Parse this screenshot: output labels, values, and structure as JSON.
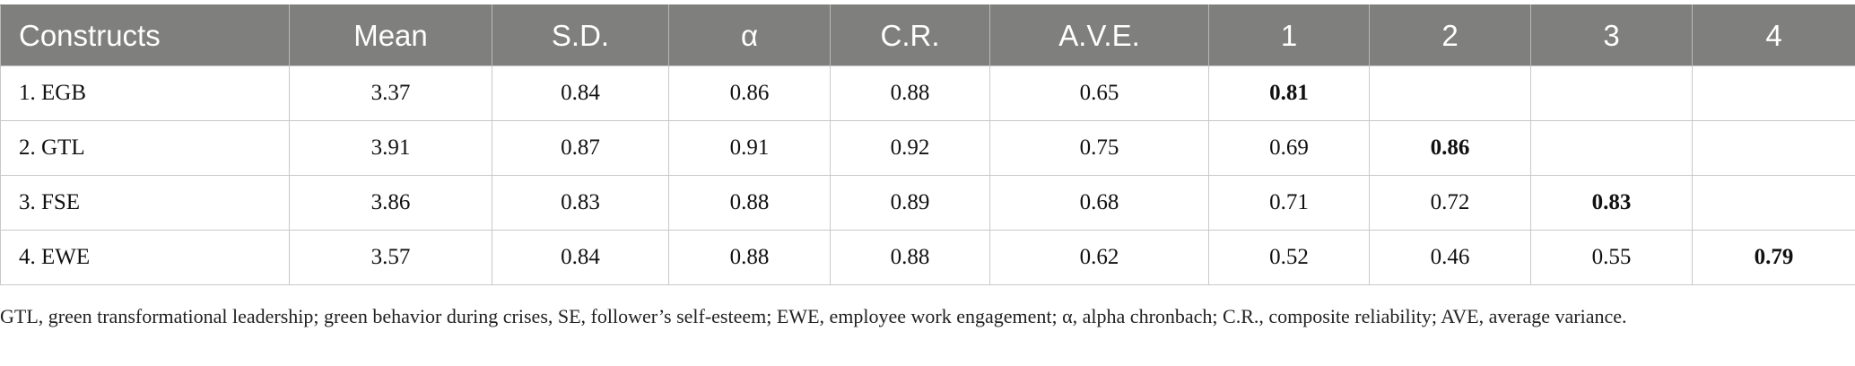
{
  "table": {
    "headers": [
      "Constructs",
      "Mean",
      "S.D.",
      "α",
      "C.R.",
      "A.V.E.",
      "1",
      "2",
      "3",
      "4"
    ],
    "rows": [
      {
        "cells": [
          "1. EGB",
          "3.37",
          "0.84",
          "0.86",
          "0.88",
          "0.65",
          "0.81",
          "",
          "",
          ""
        ]
      },
      {
        "cells": [
          "2. GTL",
          "3.91",
          "0.87",
          "0.91",
          "0.92",
          "0.75",
          "0.69",
          "0.86",
          "",
          ""
        ]
      },
      {
        "cells": [
          "3. FSE",
          "3.86",
          "0.83",
          "0.88",
          "0.89",
          "0.68",
          "0.71",
          "0.72",
          "0.83",
          ""
        ]
      },
      {
        "cells": [
          "4. EWE",
          "3.57",
          "0.84",
          "0.88",
          "0.88",
          "0.62",
          "0.52",
          "0.46",
          "0.55",
          "0.79"
        ]
      }
    ]
  },
  "footnote": "GTL, green transformational leadership; green behavior during crises, SE, follower’s self-esteem; EWE, employee work engagement; α, alpha chronbach; C.R., composite reliability; AVE, average variance."
}
